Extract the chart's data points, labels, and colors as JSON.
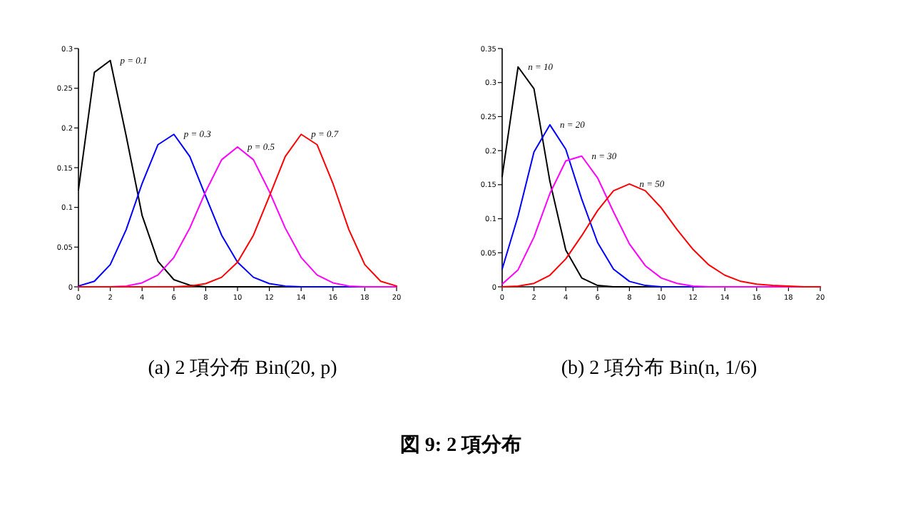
{
  "chart_data": [
    {
      "type": "line",
      "title": "(a) 2 項分布 Bin(20, p)",
      "x": [
        0,
        1,
        2,
        3,
        4,
        5,
        6,
        7,
        8,
        9,
        10,
        11,
        12,
        13,
        14,
        15,
        16,
        17,
        18,
        19,
        20
      ],
      "xlim": [
        0,
        20
      ],
      "ylim": [
        0,
        0.3
      ],
      "xticks": [
        0,
        2,
        4,
        6,
        8,
        10,
        12,
        14,
        16,
        18,
        20
      ],
      "yticks": [
        0,
        0.05,
        0.1,
        0.15,
        0.2,
        0.25,
        0.3
      ],
      "annotations": [
        "図 9: 2 項分布"
      ],
      "series": [
        {
          "name": "p = 0.1",
          "color": "#000000",
          "values": [
            0.122,
            0.27,
            0.285,
            0.19,
            0.09,
            0.032,
            0.009,
            0.002,
            0,
            0,
            0,
            0,
            0,
            0,
            0,
            0,
            0,
            0,
            0,
            0,
            0
          ]
        },
        {
          "name": "p = 0.3",
          "color": "#0000ff",
          "values": [
            0.001,
            0.007,
            0.028,
            0.072,
            0.13,
            0.179,
            0.192,
            0.164,
            0.114,
            0.065,
            0.031,
            0.012,
            0.004,
            0.001,
            0,
            0,
            0,
            0,
            0,
            null,
            null
          ]
        },
        {
          "name": "p = 0.5",
          "color": "#ff00ff",
          "values": [
            0,
            0,
            0,
            0.001,
            0.005,
            0.015,
            0.037,
            0.074,
            0.12,
            0.16,
            0.176,
            0.16,
            0.12,
            0.074,
            0.037,
            0.015,
            0.005,
            0.001,
            0,
            0,
            0
          ]
        },
        {
          "name": "p = 0.7",
          "color": "#ff0000",
          "values": [
            0,
            0,
            0,
            0,
            0,
            0,
            0,
            0.001,
            0.004,
            0.012,
            0.031,
            0.065,
            0.114,
            0.164,
            0.192,
            0.179,
            0.13,
            0.072,
            0.028,
            0.007,
            0.001
          ]
        }
      ]
    },
    {
      "type": "line",
      "title": "(b) 2 項分布 Bin(n, 1/6)",
      "x": [
        0,
        1,
        2,
        3,
        4,
        5,
        6,
        7,
        8,
        9,
        10,
        11,
        12,
        13,
        14,
        15,
        16,
        17,
        18,
        19,
        20
      ],
      "xlim": [
        0,
        20
      ],
      "ylim": [
        0,
        0.35
      ],
      "xticks": [
        0,
        2,
        4,
        6,
        8,
        10,
        12,
        14,
        16,
        18,
        20
      ],
      "yticks": [
        0,
        0.05,
        0.1,
        0.15,
        0.2,
        0.25,
        0.3,
        0.35
      ],
      "series": [
        {
          "name": "n = 10",
          "color": "#000000",
          "values": [
            0.162,
            0.323,
            0.291,
            0.155,
            0.054,
            0.013,
            0.002,
            0,
            0,
            0,
            0,
            0,
            0,
            0,
            0,
            0,
            0,
            0,
            0,
            0,
            0
          ]
        },
        {
          "name": "n = 20",
          "color": "#0000ff",
          "values": [
            0.026,
            0.104,
            0.198,
            0.238,
            0.202,
            0.129,
            0.065,
            0.026,
            0.008,
            0.002,
            0,
            0,
            0,
            0,
            null,
            null,
            null,
            null,
            null,
            null,
            null
          ]
        },
        {
          "name": "n = 30",
          "color": "#ff00ff",
          "values": [
            0.004,
            0.025,
            0.073,
            0.137,
            0.185,
            0.192,
            0.16,
            0.11,
            0.063,
            0.031,
            0.013,
            0.005,
            0.001,
            0,
            0,
            0,
            0,
            0,
            0,
            0,
            0
          ]
        },
        {
          "name": "n = 50",
          "color": "#ff0000",
          "values": [
            0,
            0.001,
            0.005,
            0.017,
            0.041,
            0.075,
            0.112,
            0.141,
            0.151,
            0.141,
            0.116,
            0.084,
            0.055,
            0.032,
            0.017,
            0.008,
            0.004,
            0.002,
            0.001,
            0,
            0
          ]
        }
      ]
    }
  ]
}
